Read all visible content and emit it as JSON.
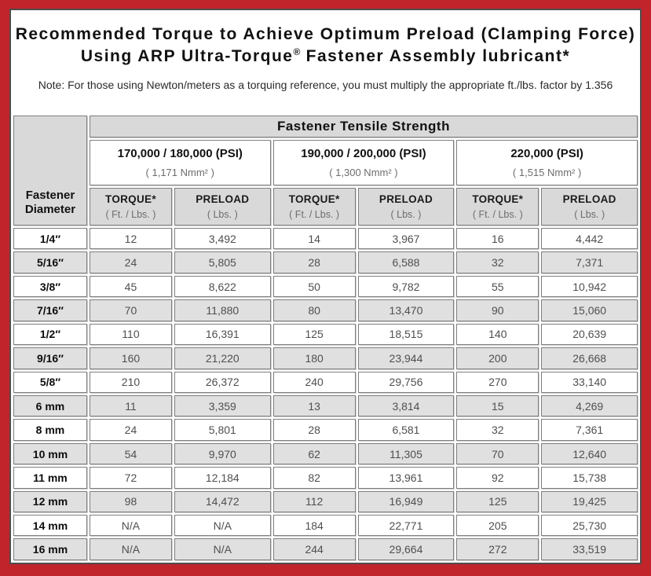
{
  "colors": {
    "frame_red": "#c1242b",
    "inner_border": "#4d4d4d",
    "header_gray": "#d9d9d9",
    "alt_row_gray": "#e0e0e0",
    "cell_border": "#7e7e7e"
  },
  "title": {
    "line1": "Recommended Torque to Achieve Optimum Preload (Clamping Force)",
    "line2_before_reg": "Using ARP Ultra-Torque",
    "registered_mark": "®",
    "line2_after_reg": " Fastener Assembly lubricant*",
    "note": "Note: For those using Newton/meters as a torquing reference, you must multiply the appropriate ft./lbs. factor by 1.356"
  },
  "table": {
    "tensile_header": "Fastener Tensile Strength",
    "corner_header": {
      "line1": "Fastener",
      "line2": "Diameter"
    },
    "strength_groups": [
      {
        "psi": "170,000 / 180,000 (PSI)",
        "nmm": "( 1,171 Nmm² )"
      },
      {
        "psi": "190,000 / 200,000 (PSI)",
        "nmm": "( 1,300 Nmm² )"
      },
      {
        "psi": "220,000 (PSI)",
        "nmm": "( 1,515 Nmm² )"
      }
    ],
    "columns": [
      {
        "label": "TORQUE*",
        "unit": "( Ft. / Lbs. )"
      },
      {
        "label": "PRELOAD",
        "unit": "( Lbs. )"
      },
      {
        "label": "TORQUE*",
        "unit": "( Ft. / Lbs. )"
      },
      {
        "label": "PRELOAD",
        "unit": "( Lbs. )"
      },
      {
        "label": "TORQUE*",
        "unit": "( Ft. / Lbs. )"
      },
      {
        "label": "PRELOAD",
        "unit": "( Lbs. )"
      }
    ],
    "rows": [
      {
        "diameter": "1/4″",
        "values": [
          "12",
          "3,492",
          "14",
          "3,967",
          "16",
          "4,442"
        ]
      },
      {
        "diameter": "5/16″",
        "values": [
          "24",
          "5,805",
          "28",
          "6,588",
          "32",
          "7,371"
        ]
      },
      {
        "diameter": "3/8″",
        "values": [
          "45",
          "8,622",
          "50",
          "9,782",
          "55",
          "10,942"
        ]
      },
      {
        "diameter": "7/16″",
        "values": [
          "70",
          "11,880",
          "80",
          "13,470",
          "90",
          "15,060"
        ]
      },
      {
        "diameter": "1/2″",
        "values": [
          "110",
          "16,391",
          "125",
          "18,515",
          "140",
          "20,639"
        ]
      },
      {
        "diameter": "9/16″",
        "values": [
          "160",
          "21,220",
          "180",
          "23,944",
          "200",
          "26,668"
        ]
      },
      {
        "diameter": "5/8″",
        "values": [
          "210",
          "26,372",
          "240",
          "29,756",
          "270",
          "33,140"
        ]
      },
      {
        "diameter": "6 mm",
        "values": [
          "11",
          "3,359",
          "13",
          "3,814",
          "15",
          "4,269"
        ]
      },
      {
        "diameter": "8 mm",
        "values": [
          "24",
          "5,801",
          "28",
          "6,581",
          "32",
          "7,361"
        ]
      },
      {
        "diameter": "10 mm",
        "values": [
          "54",
          "9,970",
          "62",
          "11,305",
          "70",
          "12,640"
        ]
      },
      {
        "diameter": "11 mm",
        "values": [
          "72",
          "12,184",
          "82",
          "13,961",
          "92",
          "15,738"
        ]
      },
      {
        "diameter": "12 mm",
        "values": [
          "98",
          "14,472",
          "112",
          "16,949",
          "125",
          "19,425"
        ]
      },
      {
        "diameter": "14 mm",
        "values": [
          "N/A",
          "N/A",
          "184",
          "22,771",
          "205",
          "25,730"
        ]
      },
      {
        "diameter": "16 mm",
        "values": [
          "N/A",
          "N/A",
          "244",
          "29,664",
          "272",
          "33,519"
        ]
      }
    ]
  }
}
